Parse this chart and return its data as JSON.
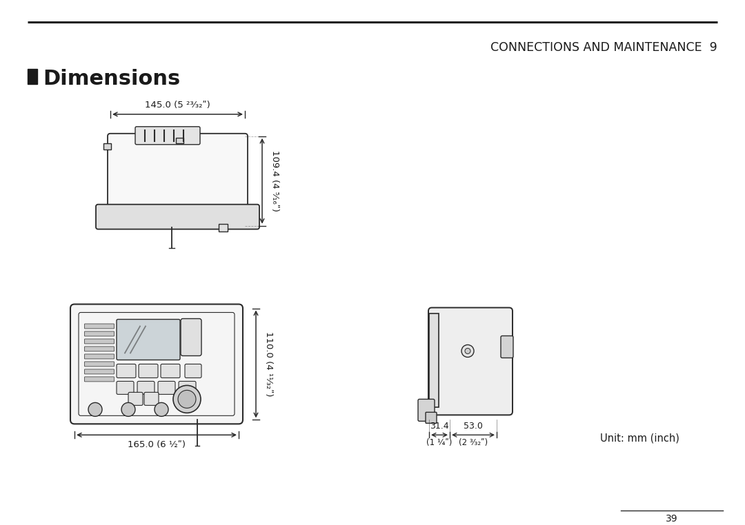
{
  "page_title": "CONNECTIONS AND MAINTENANCE",
  "page_number": "9",
  "footer_page": "39",
  "unit_text": "Unit: mm (inch)",
  "dim_top_width": "145.0 (5 ²³⁄₃₂ʺ)",
  "dim_top_height": "109.4 (4 ⁵⁄₁₆ʺ)",
  "dim_front_width": "165.0 (6 ½ʺ)",
  "dim_front_height": "110.0 (4 ¹¹⁄₃₂ʺ)",
  "dim_side_w1": "31.4",
  "dim_side_w1_inch": "(1 ¼ʺ)",
  "dim_side_w2": "53.0",
  "dim_side_w2_inch": "(2 ³⁄₃₂ʺ)",
  "bg_color": "#ffffff",
  "line_color": "#2a2a2a",
  "text_color": "#1a1a1a",
  "header_line_color": "#1a1a1a"
}
